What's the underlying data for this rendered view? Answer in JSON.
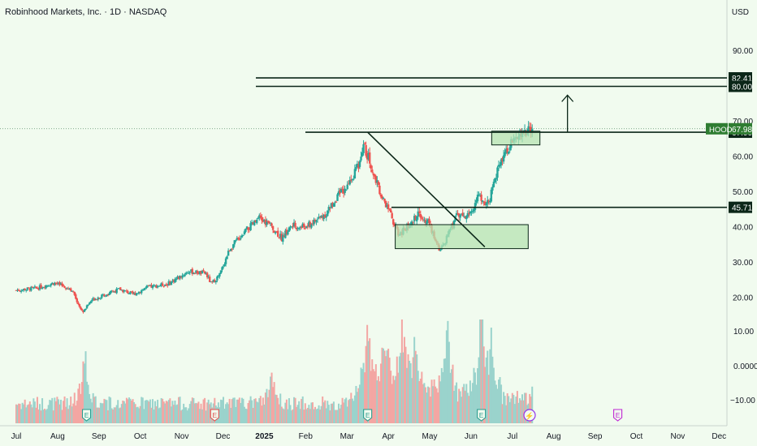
{
  "header": {
    "title": "Robinhood Markets, Inc. · 1D · NASDAQ",
    "currency": "USD"
  },
  "colors": {
    "background": "#f1fbef",
    "up": "#26a69a",
    "down": "#ef5350",
    "volume_up": "#9ad3cc",
    "volume_down": "#f3a6a3",
    "line": "#0b2618",
    "zone_fill": "#b6e3b2",
    "price_label_bg": "#0b2618",
    "current_price_bg": "#2f7d32"
  },
  "chart_data": {
    "type": "candlestick",
    "symbol": "HOOD",
    "yaxis": {
      "ticks": [
        90,
        70,
        60,
        50,
        40,
        30,
        20
      ],
      "tick_labels": [
        "90.00",
        "70.00",
        "60.00",
        "50.00",
        "40.00",
        "30.00",
        "20.00"
      ],
      "volume_ticks": [
        "10.00",
        "0.0000",
        "−10.00"
      ]
    },
    "xaxis": {
      "tick_labels": [
        "Jul",
        "Aug",
        "Sep",
        "Oct",
        "Nov",
        "Dec",
        "2025",
        "Feb",
        "Mar",
        "Apr",
        "May",
        "Jun",
        "Jul",
        "Aug",
        "Sep",
        "Oct",
        "Nov",
        "Dec"
      ]
    },
    "price_anchors": [
      {
        "t": 0,
        "p": 22.2
      },
      {
        "t": 3,
        "p": 22.8
      },
      {
        "t": 5.5,
        "p": 24.3
      },
      {
        "t": 8,
        "p": 22.5
      },
      {
        "t": 9.6,
        "p": 16.0
      },
      {
        "t": 11,
        "p": 19.5
      },
      {
        "t": 13,
        "p": 21.0
      },
      {
        "t": 15,
        "p": 22.5
      },
      {
        "t": 17,
        "p": 21.0
      },
      {
        "t": 19,
        "p": 23.0
      },
      {
        "t": 22,
        "p": 24.0
      },
      {
        "t": 25,
        "p": 27.5
      },
      {
        "t": 27.5,
        "p": 27.0
      },
      {
        "t": 28.3,
        "p": 24.0
      },
      {
        "t": 29.5,
        "p": 26.5
      },
      {
        "t": 31,
        "p": 34.0
      },
      {
        "t": 33,
        "p": 38.5
      },
      {
        "t": 35.3,
        "p": 42.5
      },
      {
        "t": 37,
        "p": 40.5
      },
      {
        "t": 38.5,
        "p": 37.0
      },
      {
        "t": 40,
        "p": 40.5
      },
      {
        "t": 42,
        "p": 40.0
      },
      {
        "t": 43.5,
        "p": 42.0
      },
      {
        "t": 45,
        "p": 44.0
      },
      {
        "t": 46.5,
        "p": 48.5
      },
      {
        "t": 48,
        "p": 51.5
      },
      {
        "t": 49.5,
        "p": 57.0
      },
      {
        "t": 50.5,
        "p": 63.0
      },
      {
        "t": 51.3,
        "p": 59.0
      },
      {
        "t": 53,
        "p": 48.5
      },
      {
        "t": 54.3,
        "p": 44.0
      },
      {
        "t": 55.5,
        "p": 38.0
      },
      {
        "t": 57,
        "p": 40.5
      },
      {
        "t": 58.5,
        "p": 44.0
      },
      {
        "t": 60,
        "p": 41.0
      },
      {
        "t": 61.5,
        "p": 33.0
      },
      {
        "t": 62.5,
        "p": 37.0
      },
      {
        "t": 64,
        "p": 43.5
      },
      {
        "t": 65.5,
        "p": 43.0
      },
      {
        "t": 67,
        "p": 48.5
      },
      {
        "t": 68.5,
        "p": 47.0
      },
      {
        "t": 70,
        "p": 57.0
      },
      {
        "t": 71.5,
        "p": 63.0
      },
      {
        "t": 73.5,
        "p": 66.5
      },
      {
        "t": 75,
        "p": 67.98
      }
    ],
    "volume_peaks": [
      {
        "t": 10,
        "v": 0.55
      },
      {
        "t": 37,
        "v": 0.35
      },
      {
        "t": 51,
        "v": 0.9
      },
      {
        "t": 53.5,
        "v": 0.8
      },
      {
        "t": 56,
        "v": 1.0
      },
      {
        "t": 58,
        "v": 0.65
      },
      {
        "t": 62.5,
        "v": 1.0
      },
      {
        "t": 67.5,
        "v": 1.0
      },
      {
        "t": 69,
        "v": 0.55
      }
    ],
    "levels": [
      {
        "value": 82.41,
        "label": "82.41"
      },
      {
        "value": 80.0,
        "label": "80.00"
      },
      {
        "value": 67.0,
        "label": "67.00"
      },
      {
        "value": 45.71,
        "label": "45.71"
      }
    ],
    "current_price": {
      "value": 67.98,
      "label": "67.98",
      "symbol_label": "HOOD"
    },
    "zones": [
      {
        "t0": 55,
        "t1": 74.3,
        "p0": 34.0,
        "p1": 40.8
      },
      {
        "t0": 69,
        "t1": 76,
        "p0": 63.4,
        "p1": 67.3
      }
    ],
    "trendline": {
      "t0": 51,
      "p0": 67.0,
      "t1": 68,
      "p1": 34.5
    },
    "arrow": {
      "t": 80,
      "p0": 67.0,
      "p1": 77.5
    },
    "earnings_markers": [
      {
        "t": 10.2,
        "label": "E",
        "style": "past"
      },
      {
        "t": 28.8,
        "label": "E",
        "style": "past-red"
      },
      {
        "t": 51,
        "label": "E",
        "style": "past"
      },
      {
        "t": 67.5,
        "label": "E",
        "style": "past"
      },
      {
        "t": 74.5,
        "label": "⚡",
        "style": "event"
      },
      {
        "t": 87.3,
        "label": "E",
        "style": "future"
      }
    ]
  }
}
